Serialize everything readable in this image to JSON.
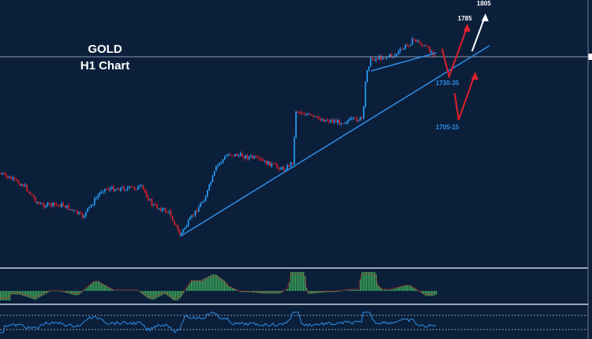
{
  "chart_data": {
    "type": "candlestick",
    "title": "GOLD",
    "subtitle": "H1 Chart",
    "annotations": [
      {
        "text": "1805",
        "kind": "target",
        "color": "#ffffff"
      },
      {
        "text": "1785",
        "kind": "target",
        "color": "#ffffff"
      },
      {
        "text": "1730-35",
        "kind": "support",
        "color": "#2f8ee8"
      },
      {
        "text": "1705-15",
        "kind": "support",
        "color": "#2f8ee8"
      }
    ],
    "indicators": [
      "MACD histogram",
      "RSI"
    ],
    "colors": {
      "background": "#0b1f3a",
      "bull": "#29a3ff",
      "bear": "#e0202a",
      "trendline": "#2f8ee8",
      "arrow": "#e0202a",
      "target_arrow": "#ffffff",
      "histogram": "#3fae5a"
    }
  }
}
